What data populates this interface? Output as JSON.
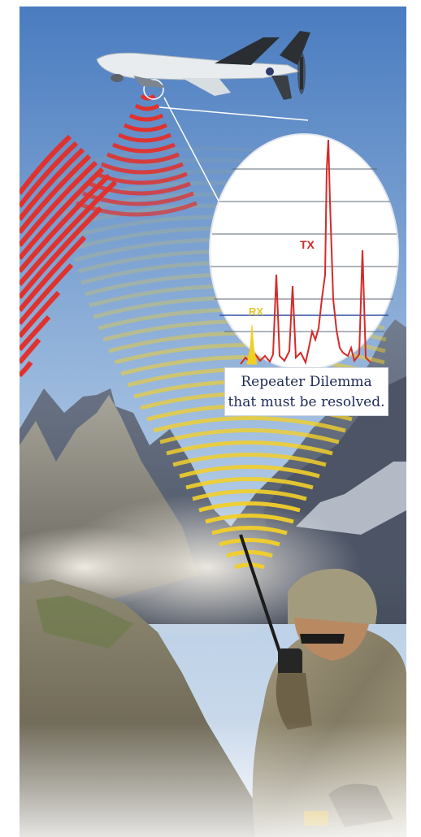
{
  "caption": {
    "line1": "Repeater Dilemma",
    "line2": "that must be resolved."
  },
  "spectrum": {
    "tx_label": "TX",
    "rx_label": "RX",
    "tx_color": "#d42a2a",
    "rx_color": "#f0d020"
  },
  "colors": {
    "sky_top": "#4f7fc0",
    "sky_bottom": "#b9cde3",
    "tx_arc": "#e0322e",
    "rx_arc": "#f2cf2a"
  },
  "icons": {
    "drone": "uav-drone-icon",
    "soldier": "soldier-with-radio-icon",
    "mountains": "mountain-range-icon"
  }
}
